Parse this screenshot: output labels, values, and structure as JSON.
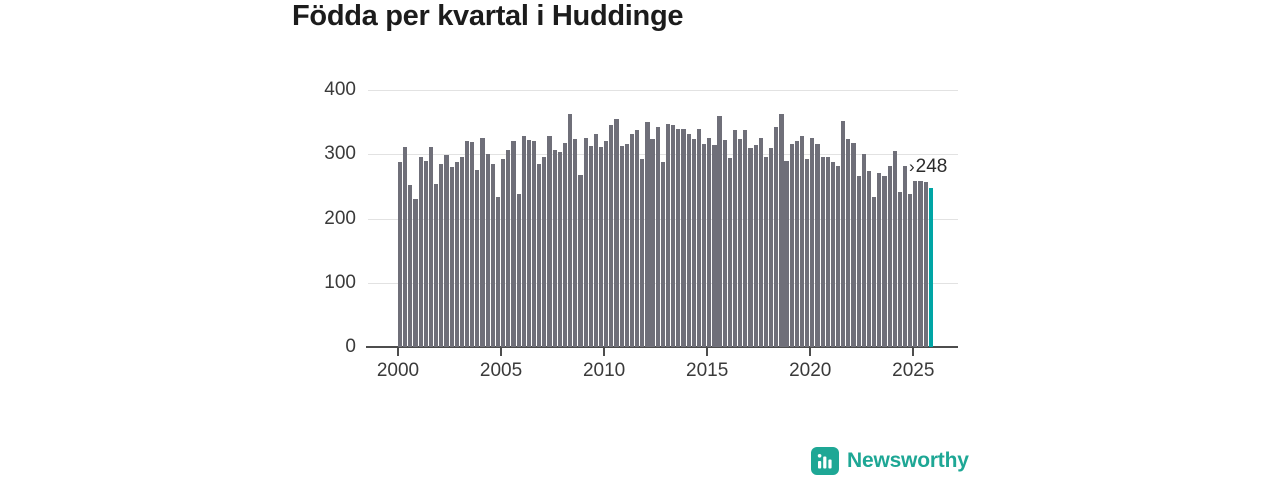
{
  "title": "Födda per kvartal i Huddinge",
  "annotation": {
    "arrow": "›",
    "value": "248"
  },
  "footer": {
    "brand": "Newsworthy"
  },
  "colors": {
    "bar": "#6f6f79",
    "highlight": "#00a5a5",
    "brand": "#1ea795",
    "axis": "#4d4d4d",
    "grid": "#e2e2e2",
    "text": "#3a3a3a"
  },
  "chart_data": {
    "type": "bar",
    "title": "Födda per kvartal i Huddinge",
    "frequency": "quarterly",
    "period_start": "2000 Q1",
    "period_end": "2025 Q4",
    "xlabel": "",
    "ylabel": "",
    "ylim": [
      0,
      400
    ],
    "grid": true,
    "y_tick_labels": [
      "0",
      "100",
      "200",
      "300",
      "400"
    ],
    "y_tick_values": [
      0,
      100,
      200,
      300,
      400
    ],
    "x_tick_labels": [
      "2000",
      "2005",
      "2010",
      "2015",
      "2020",
      "2025"
    ],
    "highlight_last_bar": true,
    "last_value_label": "248",
    "values": [
      288,
      312,
      252,
      231,
      295,
      290,
      311,
      253,
      285,
      299,
      280,
      288,
      295,
      321,
      319,
      275,
      326,
      300,
      285,
      233,
      293,
      307,
      321,
      238,
      329,
      322,
      321,
      285,
      295,
      329,
      306,
      303,
      317,
      363,
      324,
      267,
      325,
      313,
      332,
      311,
      320,
      345,
      355,
      313,
      316,
      332,
      337,
      293,
      350,
      324,
      342,
      288,
      347,
      345,
      339,
      339,
      332,
      324,
      339,
      316,
      326,
      314,
      360,
      322,
      294,
      338,
      324,
      337,
      310,
      315,
      325,
      295,
      310,
      342,
      363,
      290,
      316,
      321,
      329,
      293,
      325,
      316,
      296,
      295,
      288,
      282,
      352,
      324,
      318,
      266,
      300,
      274,
      233,
      271,
      266,
      281,
      305,
      241,
      282,
      238,
      258,
      259,
      257,
      248
    ]
  }
}
